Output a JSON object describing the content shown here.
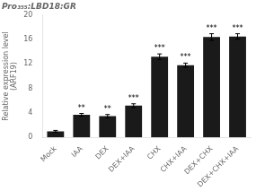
{
  "chart_data": {
    "type": "bar",
    "title": "Pro₃₅₅:LBD18:GR",
    "ylabel": "Relative expression level\n(ARF19)",
    "categories": [
      "Mock",
      "IAA",
      "DEX",
      "DEX+IAA",
      "CHX",
      "CHX+IAA",
      "DEX+CHX",
      "DEX+CHX+IAA"
    ],
    "values": [
      1.0,
      3.7,
      3.5,
      5.2,
      13.2,
      11.8,
      16.4,
      16.5
    ],
    "errors": [
      0.15,
      0.22,
      0.25,
      0.3,
      0.45,
      0.35,
      0.55,
      0.45
    ],
    "significance": [
      null,
      "**",
      "**",
      "***",
      "***",
      "***",
      "***",
      "***"
    ],
    "color": "#1a1a1a",
    "ylim": [
      0,
      20
    ],
    "yticks": [
      0,
      4,
      8,
      12,
      16,
      20
    ],
    "grid": false
  }
}
